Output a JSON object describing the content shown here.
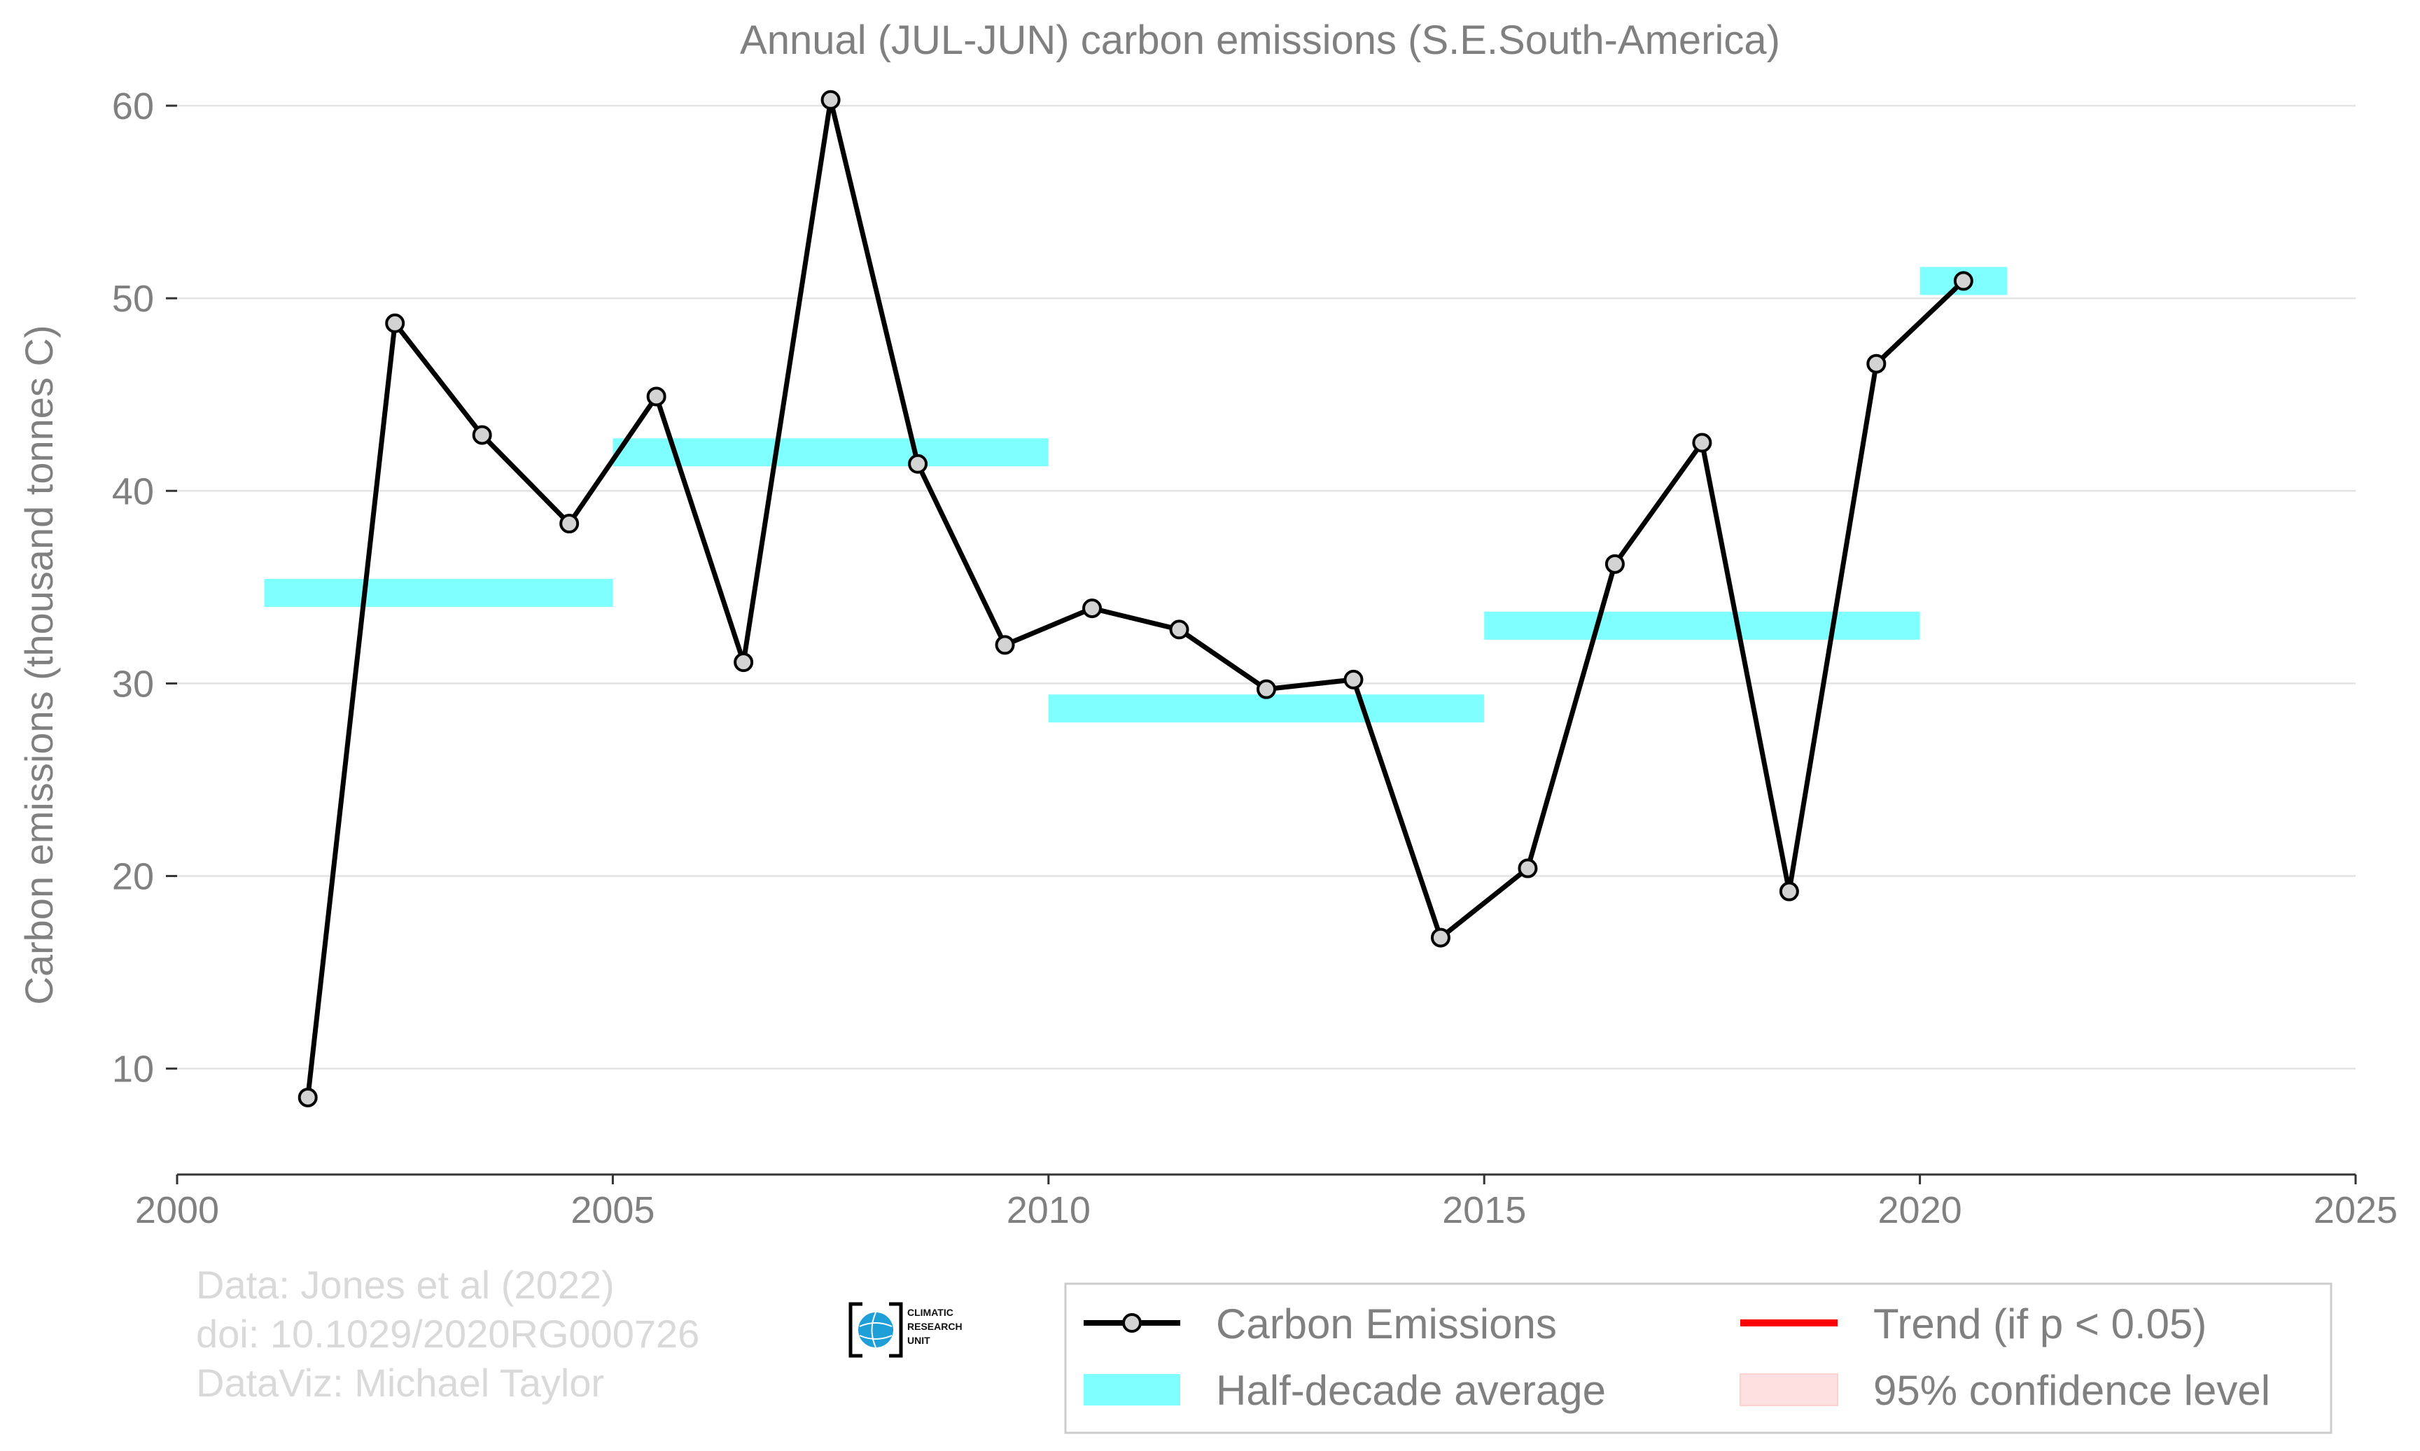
{
  "chart_data": {
    "type": "line",
    "title": "Annual (JUL-JUN) carbon emissions (S.E.South-America)",
    "xlabel": "",
    "ylabel": "Carbon emissions (thousand tonnes C)",
    "xlim": [
      2000,
      2025
    ],
    "ylim": [
      4.5,
      60.8
    ],
    "xticks": [
      2000,
      2005,
      2010,
      2015,
      2020,
      2025
    ],
    "yticks": [
      10,
      20,
      30,
      40,
      50,
      60
    ],
    "grid": "horizontal",
    "series": [
      {
        "name": "Carbon Emissions",
        "color": "#000000",
        "marker_color": "#d3d3d3",
        "x": [
          2001.5,
          2002.5,
          2003.5,
          2004.5,
          2005.5,
          2006.5,
          2007.5,
          2008.5,
          2009.5,
          2010.5,
          2011.5,
          2012.5,
          2013.5,
          2014.5,
          2015.5,
          2016.5,
          2017.5,
          2018.5,
          2019.5,
          2020.5
        ],
        "y": [
          8.5,
          48.7,
          42.9,
          38.3,
          44.9,
          31.1,
          60.3,
          41.4,
          32.0,
          33.9,
          32.8,
          29.7,
          30.2,
          16.8,
          20.4,
          36.2,
          42.5,
          19.2,
          46.6,
          50.9
        ]
      },
      {
        "name": "Half-decade average",
        "color": "#7fffff",
        "segments": [
          {
            "x0": 2001,
            "x1": 2005,
            "y": 34.7
          },
          {
            "x0": 2005,
            "x1": 2010,
            "y": 42.0
          },
          {
            "x0": 2010,
            "x1": 2015,
            "y": 28.7
          },
          {
            "x0": 2015,
            "x1": 2020,
            "y": 33.0
          },
          {
            "x0": 2020,
            "x1": 2021,
            "y": 50.9
          }
        ]
      }
    ],
    "legend": {
      "position": "bottom-right",
      "entries": [
        {
          "label": "Carbon Emissions",
          "kind": "line-marker",
          "color": "#000000"
        },
        {
          "label": "Trend (if p < 0.05)",
          "kind": "line",
          "color": "#ff0000"
        },
        {
          "label": "Half-decade average",
          "kind": "band",
          "color": "#7fffff"
        },
        {
          "label": "95% confidence level",
          "kind": "band",
          "color": "#ffe0e0"
        }
      ]
    }
  },
  "credits": {
    "line1": "Data: Jones et al (2022)",
    "line2": "doi: 10.1029/2020RG000726",
    "line3": "DataViz: Michael Taylor"
  },
  "logo": {
    "line1": "CLIMATIC",
    "line2": "RESEARCH",
    "line3": "UNIT"
  }
}
